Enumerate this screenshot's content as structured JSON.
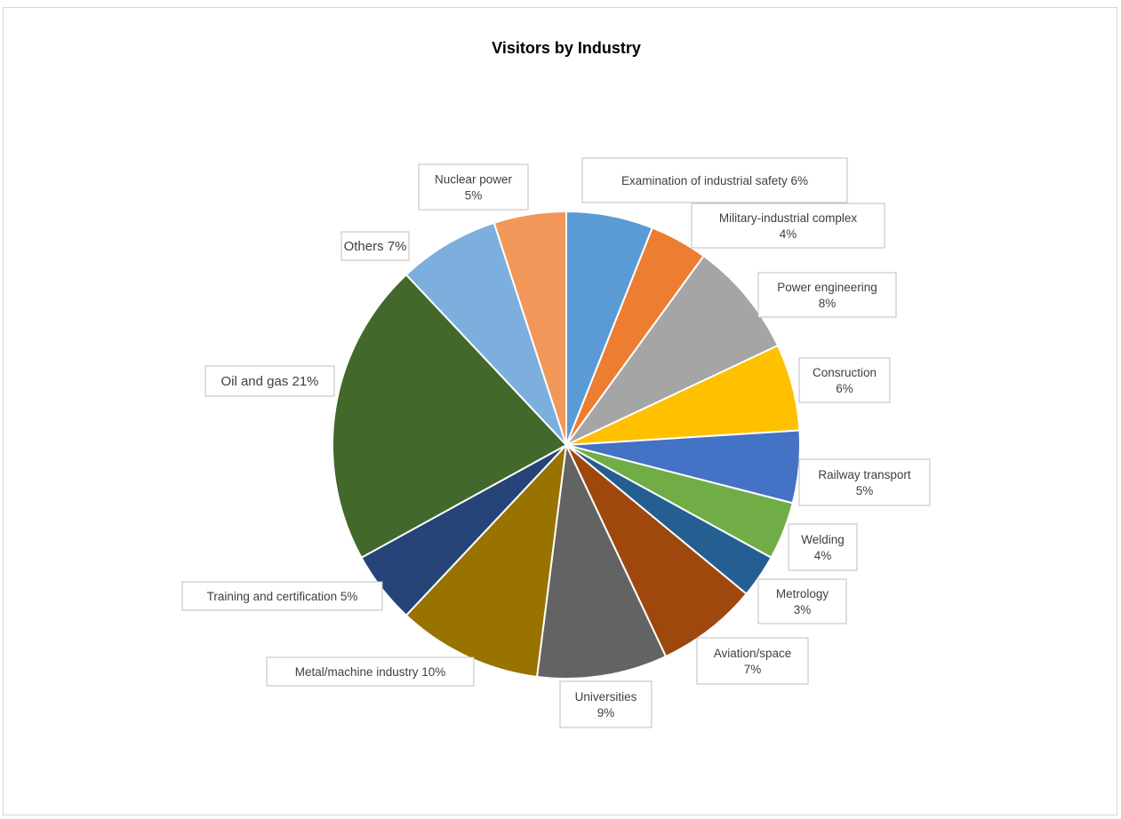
{
  "chart_data": {
    "type": "pie",
    "title": "Visitors by Industry",
    "slices": [
      {
        "name": "Examination of industrial safety",
        "value": 6,
        "value_label": "6%",
        "color": "#5b9bd5"
      },
      {
        "name": "Military-industrial complex",
        "value": 4,
        "value_label": "4%",
        "color": "#ed7d31"
      },
      {
        "name": "Power engineering",
        "value": 8,
        "value_label": "8%",
        "color": "#a5a5a5"
      },
      {
        "name": "Consruction",
        "value": 6,
        "value_label": "6%",
        "color": "#ffc000"
      },
      {
        "name": "Railway transport",
        "value": 5,
        "value_label": "5%",
        "color": "#4472c4"
      },
      {
        "name": "Welding",
        "value": 4,
        "value_label": "4%",
        "color": "#70ad47"
      },
      {
        "name": "Metrology",
        "value": 3,
        "value_label": "3%",
        "color": "#255e91"
      },
      {
        "name": "Aviation/space",
        "value": 7,
        "value_label": "7%",
        "color": "#9e480e"
      },
      {
        "name": "Universities",
        "value": 9,
        "value_label": "9%",
        "color": "#636363"
      },
      {
        "name": "Metal/machine industry",
        "value": 10,
        "value_label": "10%",
        "color": "#997300"
      },
      {
        "name": "Training and certification",
        "value": 5,
        "value_label": "5%",
        "color": "#264478"
      },
      {
        "name": "Oil and gas",
        "value": 21,
        "value_label": "21%",
        "color": "#43682b"
      },
      {
        "name": "Others",
        "value": 7,
        "value_label": "7%",
        "color": "#7cafdd"
      },
      {
        "name": "Nuclear power",
        "value": 5,
        "value_label": "5%",
        "color": "#f1975a"
      }
    ],
    "legend": "none",
    "data_labels": "category name and percentage, outside end in boxes"
  }
}
